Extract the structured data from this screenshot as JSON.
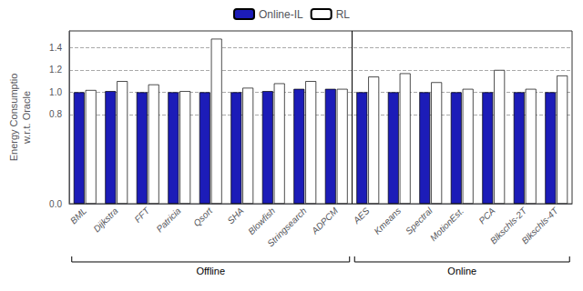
{
  "chart_data": {
    "type": "bar",
    "ylabel": "Energy Consumptio\nw.r.t. Oracle",
    "categories": [
      "BML",
      "Dijkstra",
      "FFT",
      "Patricia",
      "Qsort",
      "SHA",
      "Blowfish",
      "Stringsearch",
      "ADPCM",
      "AES",
      "Kmeans",
      "Spectral",
      "MotionEst.",
      "PCA",
      "Blkschls-2T",
      "Blkschls-4T"
    ],
    "series": [
      {
        "name": "Online-IL",
        "color": "#1c1cb8",
        "values": [
          1.0,
          1.01,
          1.0,
          1.0,
          1.0,
          1.0,
          1.01,
          1.03,
          1.03,
          1.0,
          1.0,
          1.0,
          1.0,
          1.0,
          1.0,
          1.0
        ]
      },
      {
        "name": "RL",
        "color": "#ffffff",
        "values": [
          1.02,
          1.1,
          1.07,
          1.01,
          1.48,
          1.04,
          1.08,
          1.1,
          1.03,
          1.14,
          1.17,
          1.09,
          1.03,
          1.2,
          1.03,
          1.15
        ]
      }
    ],
    "ylim": [
      0.0,
      1.55
    ],
    "yticks": [
      {
        "value": 0,
        "label": "0.0"
      },
      0.8,
      {
        "value": 1,
        "label": "1.0"
      },
      1.2,
      1.4
    ],
    "grid": true,
    "legend": "top",
    "annotations": [
      {
        "text": "Offline",
        "from": "BML",
        "to": "ADPCM"
      },
      {
        "text": "Online",
        "from": "AES",
        "to": "Blkschls-4T"
      }
    ]
  }
}
